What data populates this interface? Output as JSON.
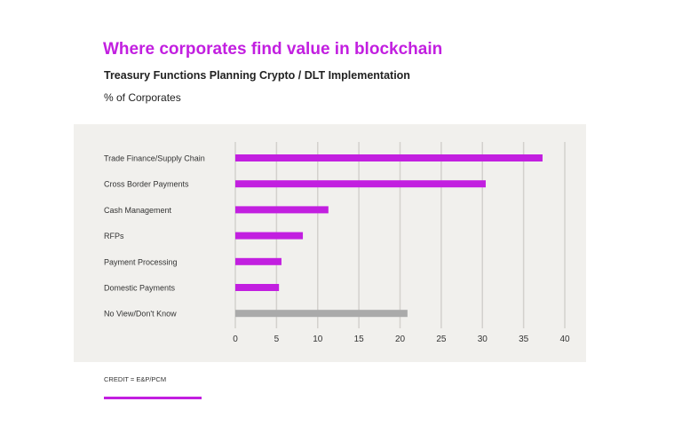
{
  "header": {
    "title": "Where corporates find value in blockchain",
    "subtitle": "Treasury Functions Planning Crypto / DLT Implementation",
    "unit_label": "% of Corporates"
  },
  "chart_data": {
    "type": "bar",
    "orientation": "horizontal",
    "title": "Where corporates find value in blockchain",
    "subtitle": "Treasury Functions Planning Crypto / DLT Implementation",
    "xlabel": "% of Corporates",
    "ylabel": "",
    "categories": [
      "Trade Finance/Supply Chain",
      "Cross Border Payments",
      "Cash Management",
      "RFPs",
      "Payment Processing",
      "Domestic Payments",
      "No View/Don't Know"
    ],
    "values": [
      37.3,
      30.4,
      11.3,
      8.2,
      5.6,
      5.3,
      20.9
    ],
    "bar_colors": [
      "#c21fe0",
      "#c21fe0",
      "#c21fe0",
      "#c21fe0",
      "#c21fe0",
      "#c21fe0",
      "#aaaaaa"
    ],
    "xlim": [
      0,
      40
    ],
    "xticks": [
      "0",
      "5",
      "10",
      "15",
      "20",
      "25",
      "30",
      "35",
      "40"
    ],
    "grid": "vertical",
    "legend": "none"
  },
  "footer": {
    "credit": "CREDIT = E&P/PCM",
    "accent": "#c21fe0"
  }
}
